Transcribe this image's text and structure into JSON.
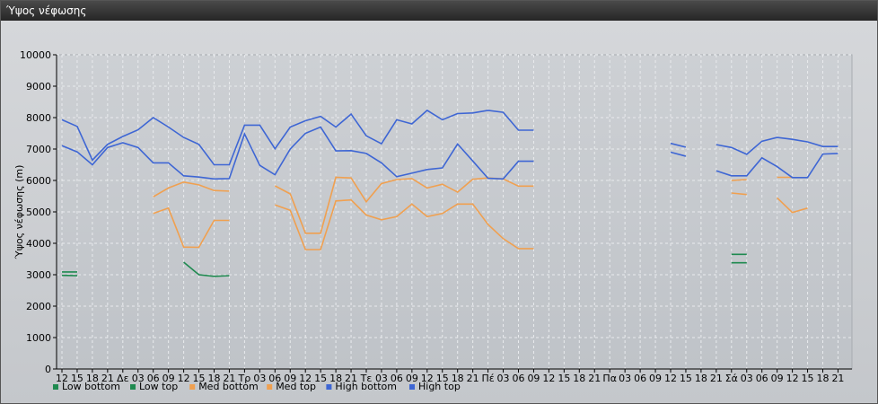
{
  "window": {
    "title": "Ύψος νέφωσης"
  },
  "chart_data": {
    "type": "line",
    "title": "",
    "ylabel": "Ύψος νέφωσης (m)",
    "xlabel": "",
    "ylim": [
      0,
      10000
    ],
    "yticks": [
      0,
      1000,
      2000,
      3000,
      4000,
      5000,
      6000,
      7000,
      8000,
      9000,
      10000
    ],
    "grid": true,
    "legend": "bottom-left",
    "x": [
      "12",
      "15",
      "18",
      "21",
      "Δε",
      "03",
      "06",
      "09",
      "12",
      "15",
      "18",
      "21",
      "Τρ",
      "03",
      "06",
      "09",
      "12",
      "15",
      "18",
      "21",
      "Τε",
      "03",
      "06",
      "09",
      "12",
      "15",
      "18",
      "21",
      "Πέ",
      "03",
      "06",
      "09",
      "12",
      "15",
      "18",
      "21",
      "Πα",
      "03",
      "06",
      "09",
      "12",
      "15",
      "18",
      "21",
      "Σά",
      "03",
      "06",
      "09",
      "12",
      "15",
      "18",
      "21"
    ],
    "series": [
      {
        "name": "Low bottom",
        "color": "#1f8a50",
        "values": [
          2980,
          2970,
          null,
          null,
          null,
          null,
          null,
          null,
          null,
          null,
          null,
          null,
          null,
          null,
          null,
          null,
          null,
          null,
          null,
          null,
          null,
          null,
          null,
          null,
          null,
          null,
          null,
          null,
          null,
          null,
          null,
          null,
          null,
          null,
          null,
          null,
          null,
          null,
          null,
          null,
          null,
          null,
          null,
          null,
          3380,
          3380,
          null,
          null,
          null,
          null,
          null,
          null
        ]
      },
      {
        "name": "Low top",
        "color": "#1f8a50",
        "values": [
          3090,
          3090,
          null,
          null,
          null,
          null,
          null,
          null,
          3400,
          3000,
          2950,
          2970,
          null,
          null,
          null,
          null,
          null,
          null,
          null,
          null,
          null,
          null,
          null,
          null,
          null,
          null,
          null,
          null,
          null,
          null,
          null,
          null,
          null,
          null,
          null,
          null,
          null,
          null,
          null,
          null,
          null,
          null,
          null,
          null,
          3650,
          3650,
          null,
          null,
          null,
          null,
          null,
          null
        ]
      },
      {
        "name": "Med bottom",
        "color": "#f0a050",
        "values": [
          null,
          null,
          null,
          null,
          null,
          null,
          4950,
          5120,
          3880,
          3870,
          4730,
          4730,
          null,
          null,
          5220,
          5050,
          3800,
          3800,
          5350,
          5380,
          4900,
          4750,
          4850,
          5250,
          4850,
          4950,
          5250,
          5250,
          4600,
          4150,
          3830,
          3830,
          null,
          null,
          null,
          null,
          null,
          null,
          null,
          null,
          null,
          null,
          null,
          null,
          5600,
          5550,
          null,
          5450,
          4980,
          5120,
          null,
          null
        ]
      },
      {
        "name": "Med top",
        "color": "#f0a050",
        "values": [
          null,
          null,
          null,
          null,
          null,
          null,
          5480,
          5760,
          5950,
          5860,
          5680,
          5660,
          null,
          null,
          5830,
          5570,
          4320,
          4320,
          6100,
          6080,
          5320,
          5900,
          6030,
          6060,
          5760,
          5880,
          5630,
          6040,
          6080,
          6050,
          5820,
          5820,
          null,
          null,
          null,
          null,
          null,
          null,
          null,
          null,
          null,
          null,
          null,
          null,
          6000,
          6030,
          null,
          6100,
          6100,
          null,
          null,
          null
        ]
      },
      {
        "name": "High bottom",
        "color": "#3e66d4",
        "values": [
          7110,
          6910,
          6500,
          7050,
          7200,
          7050,
          6560,
          6560,
          6150,
          6110,
          6050,
          6060,
          7480,
          6480,
          6180,
          7000,
          7500,
          7700,
          6940,
          6950,
          6860,
          6560,
          6120,
          6230,
          6350,
          6400,
          7160,
          6620,
          6070,
          6050,
          6610,
          6610,
          null,
          null,
          null,
          null,
          null,
          null,
          null,
          null,
          6900,
          6770,
          null,
          6310,
          6150,
          6150,
          6720,
          6440,
          6090,
          6090,
          6840,
          6860
        ]
      },
      {
        "name": "High top",
        "color": "#3e66d4",
        "values": [
          7930,
          7720,
          6650,
          7150,
          7400,
          7610,
          8000,
          7700,
          7370,
          7150,
          6500,
          6500,
          7760,
          7760,
          7010,
          7700,
          7900,
          8040,
          7700,
          8110,
          7420,
          7170,
          7930,
          7800,
          8230,
          7930,
          8130,
          8150,
          8230,
          8170,
          7600,
          7600,
          null,
          null,
          null,
          null,
          null,
          null,
          null,
          null,
          7180,
          7060,
          null,
          7140,
          7050,
          6830,
          7250,
          7370,
          7310,
          7230,
          7080,
          7080
        ]
      }
    ]
  }
}
